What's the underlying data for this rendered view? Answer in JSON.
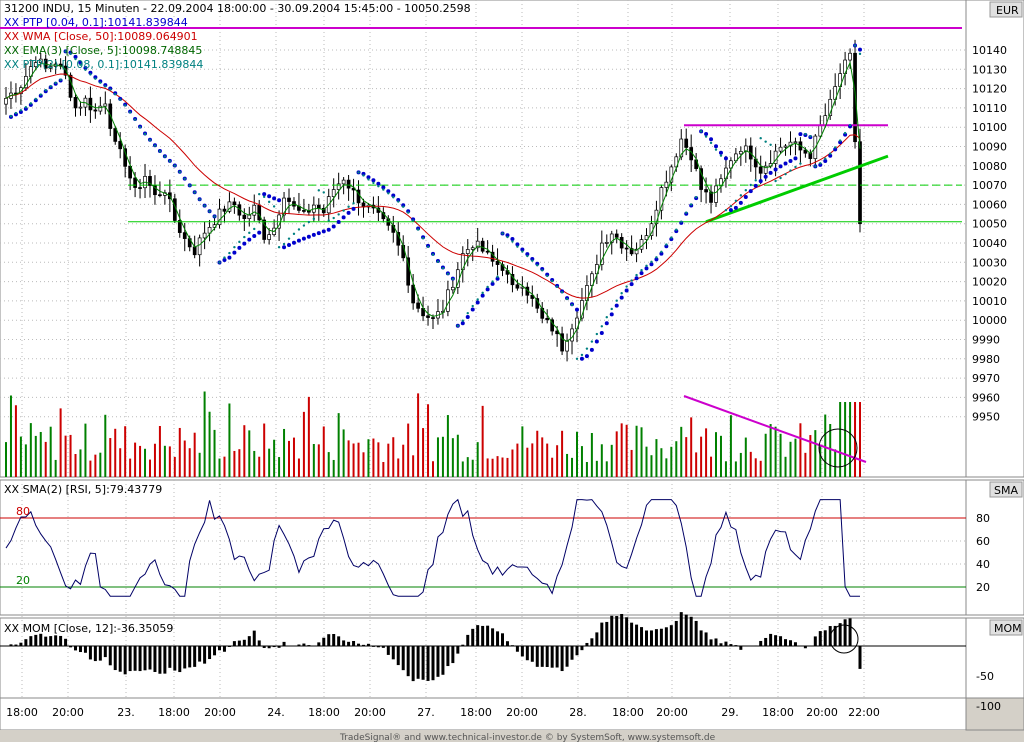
{
  "header": {
    "main": "31200  INDU, 15 Minuten - 22.09.2004 18:00:00 - 30.09.2004 15:45:00 - 10050.2598",
    "ptp": "XX PTP [0.04, 0.1]:10141.839844",
    "wma": "XX WMA [Close, 50]:10089.064901",
    "ema": "XX EMA(3) [Close, 5]:10098.748845",
    "ptp2": "XX PTP(2) [0.08, 0.1]:10141.839844",
    "currency": "EUR"
  },
  "rsi": {
    "title": "XX SMA(2) [RSI, 5]:79.43779",
    "unit": "SMA",
    "level_high": "80",
    "level_low": "20"
  },
  "mom": {
    "title": "XX MOM [Close, 12]:-36.35059",
    "unit": "MOM"
  },
  "footer": "TradeSignal® and www.technical-investor.de © by SystemSoft, www.systemsoft.de",
  "colors": {
    "up": "#008000",
    "down": "#cc0000",
    "ptp": "#0000cc",
    "wma": "#cc0000",
    "ema": "#008000",
    "ptp2": "#008080",
    "trend": "#00cc00",
    "magenta": "#cc00cc"
  },
  "chart_data": [
    {
      "type": "candlestick",
      "title": "31200  INDU, 15 Minuten - 22.09.2004 18:00:00 - 30.09.2004 15:45:00 - 10050.2598",
      "y_ticks": [
        10140,
        10130,
        10120,
        10110,
        10100,
        10090,
        10080,
        10070,
        10060,
        10050,
        10040,
        10030,
        10020,
        10010,
        10000,
        9990,
        9980,
        9970,
        9960,
        9950
      ],
      "ylim": [
        9944,
        10150
      ],
      "x_ticks": [
        "18:00",
        "20:00",
        "23.",
        "18:00",
        "20:00",
        "24.",
        "18:00",
        "20:00",
        "27.",
        "18:00",
        "20:00",
        "28.",
        "18:00",
        "20:00",
        "29.",
        "18:00",
        "20:00",
        "22:00"
      ],
      "close_path": [
        [
          0,
          10115
        ],
        [
          3,
          10122
        ],
        [
          6,
          10136
        ],
        [
          8,
          10130
        ],
        [
          10,
          10134
        ],
        [
          12,
          10126
        ],
        [
          14,
          10110
        ],
        [
          16,
          10114
        ],
        [
          18,
          10108
        ],
        [
          20,
          10114
        ],
        [
          22,
          10090
        ],
        [
          24,
          10082
        ],
        [
          26,
          10066
        ],
        [
          28,
          10075
        ],
        [
          30,
          10064
        ],
        [
          32,
          10068
        ],
        [
          34,
          10052
        ],
        [
          36,
          10042
        ],
        [
          38,
          10036
        ],
        [
          40,
          10046
        ],
        [
          42,
          10052
        ],
        [
          44,
          10058
        ],
        [
          46,
          10060
        ],
        [
          48,
          10052
        ],
        [
          50,
          10058
        ],
        [
          52,
          10044
        ],
        [
          54,
          10048
        ],
        [
          56,
          10066
        ],
        [
          58,
          10058
        ],
        [
          60,
          10054
        ],
        [
          62,
          10060
        ],
        [
          64,
          10056
        ],
        [
          66,
          10068
        ],
        [
          68,
          10074
        ],
        [
          70,
          10066
        ],
        [
          72,
          10060
        ],
        [
          74,
          10056
        ],
        [
          76,
          10050
        ],
        [
          78,
          10044
        ],
        [
          80,
          10032
        ],
        [
          82,
          10010
        ],
        [
          84,
          10004
        ],
        [
          86,
          10000
        ],
        [
          88,
          10006
        ],
        [
          90,
          10020
        ],
        [
          92,
          10034
        ],
        [
          94,
          10040
        ],
        [
          96,
          10036
        ],
        [
          98,
          10030
        ],
        [
          100,
          10028
        ],
        [
          102,
          10016
        ],
        [
          104,
          10020
        ],
        [
          106,
          10010
        ],
        [
          108,
          10000
        ],
        [
          110,
          9996
        ],
        [
          112,
          9986
        ],
        [
          114,
          9998
        ],
        [
          116,
          10010
        ],
        [
          118,
          10022
        ],
        [
          120,
          10040
        ],
        [
          122,
          10046
        ],
        [
          124,
          10040
        ],
        [
          126,
          10036
        ],
        [
          128,
          10040
        ],
        [
          130,
          10052
        ],
        [
          132,
          10068
        ],
        [
          134,
          10080
        ],
        [
          136,
          10094
        ],
        [
          138,
          10086
        ],
        [
          140,
          10068
        ],
        [
          142,
          10062
        ],
        [
          144,
          10072
        ],
        [
          146,
          10084
        ],
        [
          148,
          10090
        ],
        [
          150,
          10086
        ],
        [
          152,
          10078
        ],
        [
          154,
          10084
        ],
        [
          156,
          10090
        ],
        [
          158,
          10092
        ],
        [
          160,
          10088
        ],
        [
          162,
          10086
        ],
        [
          164,
          10100
        ],
        [
          166,
          10112
        ],
        [
          168,
          10128
        ],
        [
          170,
          10136
        ],
        [
          172,
          10050
        ]
      ],
      "volume_n_bars": 173
    },
    {
      "type": "line",
      "title": "XX SMA(2) [RSI, 5]:79.43779",
      "y_ticks": [
        80,
        60,
        40,
        20
      ],
      "ylim": [
        0,
        100
      ],
      "reference_lines": [
        80,
        20
      ]
    },
    {
      "type": "bar",
      "title": "XX MOM [Close, 12]:-36.35059",
      "y_ticks": [
        -50,
        -100
      ]
    }
  ]
}
